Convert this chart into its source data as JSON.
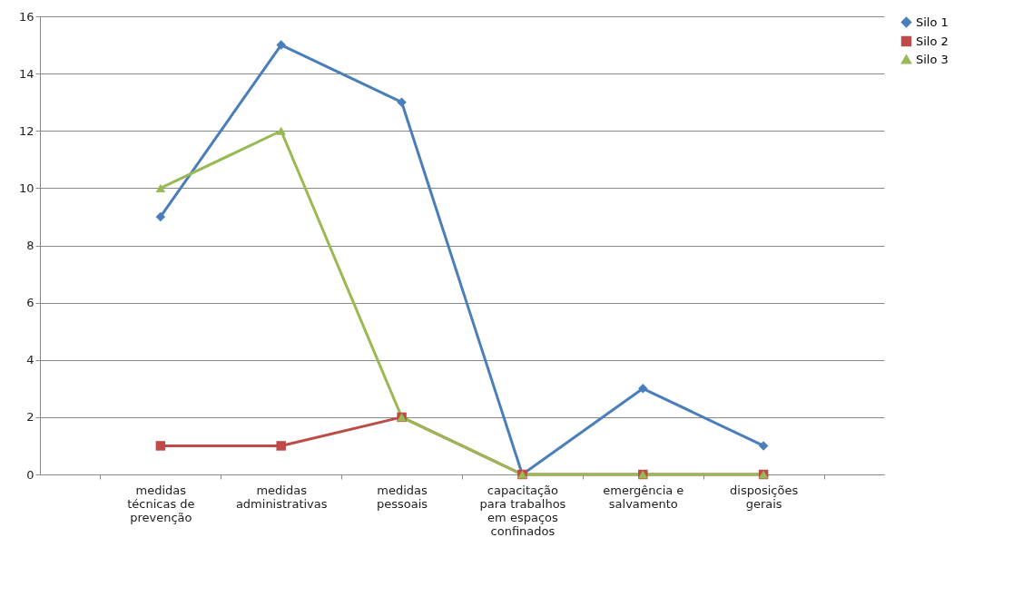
{
  "chart_data": {
    "type": "line",
    "categories": [
      "medidas técnicas de prevenção",
      "medidas administrativas",
      "medidas pessoais",
      "capacitação para trabalhos em espaços confinados",
      "emergência e salvamento",
      "disposições gerais"
    ],
    "series": [
      {
        "name": "Silo 1",
        "color": "#4a7ebb",
        "marker": "diamond",
        "values": [
          9,
          15,
          13,
          0,
          3,
          1
        ]
      },
      {
        "name": "Silo 2",
        "color": "#be4b48",
        "marker": "square",
        "values": [
          1,
          1,
          2,
          0,
          0,
          0
        ]
      },
      {
        "name": "Silo 3",
        "color": "#98b954",
        "marker": "triangle",
        "values": [
          10,
          12,
          2,
          0,
          0,
          0
        ]
      }
    ],
    "ylim": [
      0,
      16
    ],
    "yticks": [
      0,
      2,
      4,
      6,
      8,
      10,
      12,
      14,
      16
    ],
    "grid": "y",
    "legend": "right",
    "line_style": "solid"
  }
}
